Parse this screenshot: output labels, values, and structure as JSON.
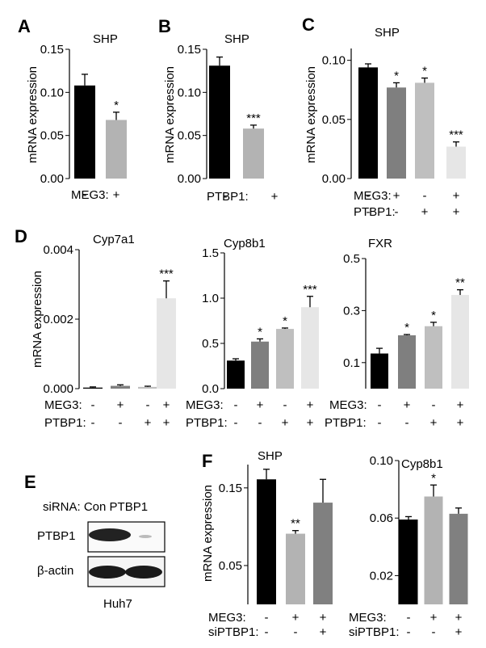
{
  "figure": {
    "panel_labels": [
      "A",
      "B",
      "C",
      "D",
      "E",
      "F"
    ],
    "ylabel": "mRNA expression",
    "blot": {
      "header": "siRNA: Con PTBP1",
      "rows": [
        "PTBP1",
        "β-actin"
      ],
      "cell_line": "Huh7"
    }
  },
  "chart_data": [
    {
      "panel": "A",
      "type": "bar",
      "title": "SHP",
      "ylabel": "mRNA expression",
      "ylim": [
        0,
        0.15
      ],
      "yticks": [
        "0.00",
        "0.05",
        "0.10",
        "0.15"
      ],
      "groups": [
        "MEG3:"
      ],
      "conditions": [
        [
          "-",
          "+"
        ]
      ],
      "values": [
        0.108,
        0.068
      ],
      "errors": [
        0.013,
        0.009
      ],
      "colors": [
        "#000000",
        "#b3b3b3"
      ],
      "sig": [
        "",
        "*"
      ]
    },
    {
      "panel": "B",
      "type": "bar",
      "title": "SHP",
      "ylabel": "mRNA expression",
      "ylim": [
        0,
        0.15
      ],
      "yticks": [
        "0.00",
        "0.05",
        "0.10",
        "0.15"
      ],
      "groups": [
        "PTBP1:"
      ],
      "conditions": [
        [
          "-",
          "+"
        ]
      ],
      "values": [
        0.131,
        0.058
      ],
      "errors": [
        0.01,
        0.004
      ],
      "colors": [
        "#000000",
        "#b3b3b3"
      ],
      "sig": [
        "",
        "***"
      ]
    },
    {
      "panel": "C",
      "type": "bar",
      "title": "SHP",
      "ylabel": "mRNA expression",
      "ylim": [
        0,
        0.11
      ],
      "yticks": [
        "0.00",
        "0.05",
        "0.10"
      ],
      "groups": [
        "MEG3:",
        "PTBP1:"
      ],
      "conditions": [
        [
          "-",
          "+",
          "-",
          "+"
        ],
        [
          "-",
          "-",
          "+",
          "+"
        ]
      ],
      "values": [
        0.094,
        0.077,
        0.081,
        0.027
      ],
      "errors": [
        0.003,
        0.004,
        0.004,
        0.004
      ],
      "colors": [
        "#000000",
        "#7f7f7f",
        "#bfbfbf",
        "#e6e6e6"
      ],
      "sig": [
        "",
        "*",
        "*",
        "***"
      ]
    },
    {
      "panel": "D",
      "type": "bar",
      "title": "Cyp7a1",
      "ylabel": "mRNA expression",
      "ylim": [
        0,
        0.004
      ],
      "yticks": [
        "0.000",
        "0.002",
        "0.004"
      ],
      "groups": [
        "MEG3:",
        "PTBP1:"
      ],
      "conditions": [
        [
          "-",
          "+",
          "-",
          "+"
        ],
        [
          "-",
          "-",
          "+",
          "+"
        ]
      ],
      "values": [
        3e-05,
        8e-05,
        5e-05,
        0.0026
      ],
      "errors": [
        2e-05,
        3e-05,
        2e-05,
        0.0005
      ],
      "colors": [
        "#000000",
        "#7f7f7f",
        "#bfbfbf",
        "#e6e6e6"
      ],
      "sig": [
        "",
        "",
        "",
        "***"
      ]
    },
    {
      "panel": "D",
      "type": "bar",
      "title": "Cyp8b1",
      "ylim": [
        0,
        1.5
      ],
      "yticks": [
        "0.0",
        "0.5",
        "1.0",
        "1.5"
      ],
      "groups": [
        "MEG3:",
        "PTBP1:"
      ],
      "conditions": [
        [
          "-",
          "+",
          "-",
          "+"
        ],
        [
          "-",
          "-",
          "+",
          "+"
        ]
      ],
      "values": [
        0.31,
        0.52,
        0.66,
        0.9
      ],
      "errors": [
        0.02,
        0.03,
        0.01,
        0.12
      ],
      "colors": [
        "#000000",
        "#7f7f7f",
        "#bfbfbf",
        "#e6e6e6"
      ],
      "sig": [
        "",
        "*",
        "*",
        "***"
      ]
    },
    {
      "panel": "D",
      "type": "bar",
      "title": "FXR",
      "ylim": [
        0,
        0.5
      ],
      "yticks": [
        "0.1",
        "0.3",
        "0.5"
      ],
      "groups": [
        "MEG3:",
        "PTBP1:"
      ],
      "conditions": [
        [
          "-",
          "+",
          "-",
          "+"
        ],
        [
          "-",
          "-",
          "+",
          "+"
        ]
      ],
      "values": [
        0.135,
        0.205,
        0.24,
        0.36
      ],
      "errors": [
        0.02,
        0.003,
        0.015,
        0.02
      ],
      "colors": [
        "#000000",
        "#7f7f7f",
        "#bfbfbf",
        "#e6e6e6"
      ],
      "sig": [
        "",
        "*",
        "*",
        "**"
      ]
    },
    {
      "panel": "F",
      "type": "bar",
      "title": "SHP",
      "ylabel": "mRNA expression",
      "ylim": [
        0,
        0.18
      ],
      "yticks": [
        "0.05",
        "0.15"
      ],
      "groups": [
        "MEG3:",
        "siPTBP1:"
      ],
      "conditions": [
        [
          "-",
          "+",
          "+"
        ],
        [
          "-",
          "-",
          "+"
        ]
      ],
      "values": [
        0.161,
        0.091,
        0.131
      ],
      "errors": [
        0.013,
        0.004,
        0.03
      ],
      "colors": [
        "#000000",
        "#b3b3b3",
        "#808080"
      ],
      "sig": [
        "",
        "**",
        ""
      ]
    },
    {
      "panel": "F",
      "type": "bar",
      "title": "Cyp8b1",
      "ylim": [
        0,
        0.1
      ],
      "yticks": [
        "0.02",
        "0.06",
        "0.10"
      ],
      "groups": [
        "MEG3:",
        "siPTBP1:"
      ],
      "conditions": [
        [
          "-",
          "+",
          "+"
        ],
        [
          "-",
          "-",
          "+"
        ]
      ],
      "values": [
        0.059,
        0.075,
        0.063
      ],
      "errors": [
        0.002,
        0.008,
        0.004
      ],
      "colors": [
        "#000000",
        "#b3b3b3",
        "#808080"
      ],
      "sig": [
        "",
        "*",
        ""
      ]
    }
  ]
}
